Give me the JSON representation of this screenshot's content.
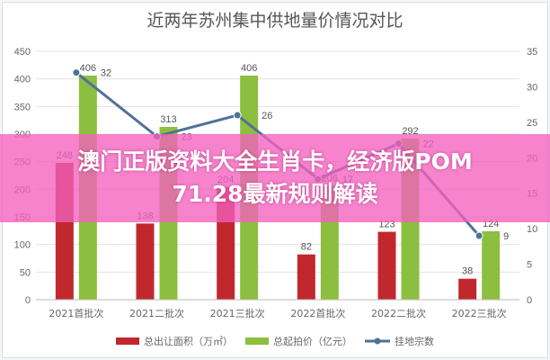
{
  "chart_data": {
    "type": "bar",
    "title": "近两年苏州集中供地量价情况对比",
    "categories": [
      "2021首批次",
      "2021二批次",
      "2021三批次",
      "2022首批次",
      "2022二批次",
      "2022三批次"
    ],
    "series": [
      {
        "name": "总出让面积（万㎡）",
        "type": "bar",
        "axis": "left",
        "color": "#c0282e",
        "values": [
          248,
          138,
          204,
          82,
          123,
          38
        ]
      },
      {
        "name": "总起拍价（亿元）",
        "type": "bar",
        "axis": "left",
        "color": "#8cbf3f",
        "values": [
          406,
          313,
          406,
          206,
          292,
          124
        ]
      },
      {
        "name": "挂地宗数",
        "type": "line",
        "axis": "right",
        "color": "#4f7297",
        "values": [
          32,
          23,
          26,
          17,
          22,
          9
        ]
      }
    ],
    "left_axis": {
      "ylim": [
        0,
        450
      ],
      "ticks": [
        "0",
        "50",
        "100",
        "150",
        "200",
        "250",
        "300",
        "350",
        "400",
        "450"
      ]
    },
    "right_axis": {
      "ylim": [
        0,
        35
      ],
      "ticks": [
        "0",
        "5",
        "10",
        "15",
        "20",
        "25",
        "30",
        "35"
      ]
    },
    "grid": true,
    "legend": "bottom"
  },
  "banner": {
    "line1": "澳门正版资料大全生肖卡，经济版POM",
    "line2": "71.28最新规则解读"
  }
}
